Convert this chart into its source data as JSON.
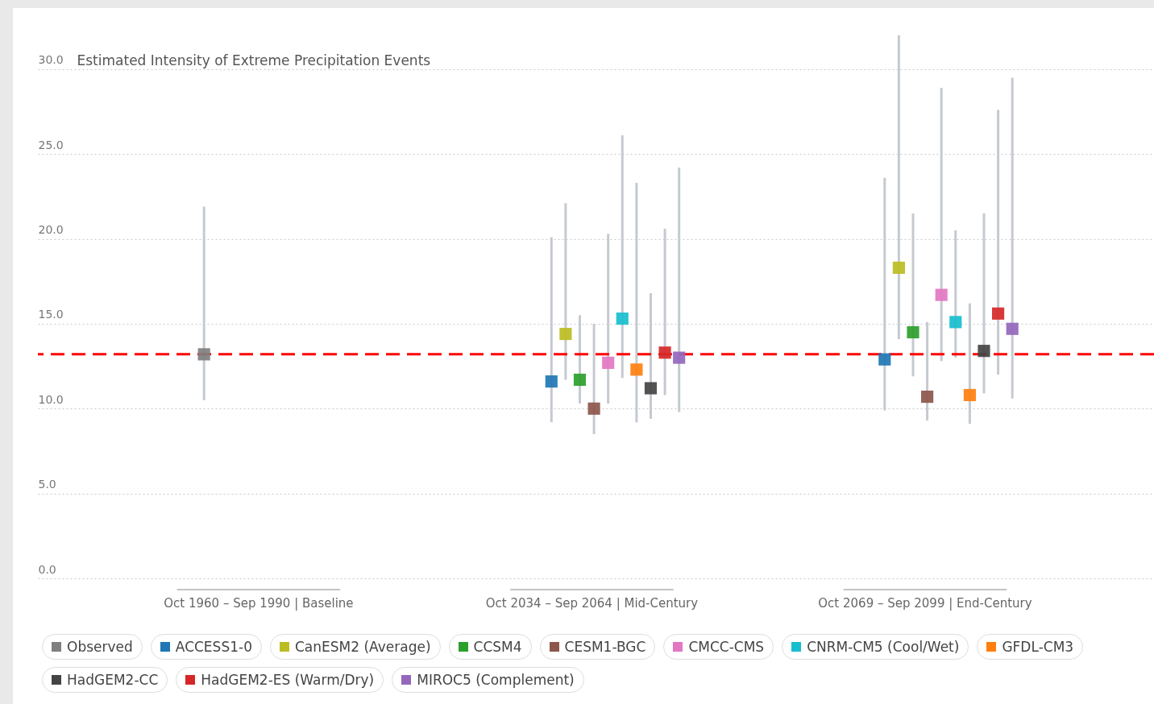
{
  "chart_data": {
    "type": "scatter",
    "ylabel": "Estimated Intensity of Extreme Precipitation Events",
    "categories": [
      "Oct 1960 – Sep 1990 | Baseline",
      "Oct 2034 – Sep 2064 | Mid-Century",
      "Oct 2069 – Sep 2099 | End-Century"
    ],
    "series": [
      {
        "name": "Observed",
        "color": "#7f7f7f",
        "values": [
          13.2,
          null,
          null
        ],
        "errors": [
          [
            10.5,
            21.9
          ],
          null,
          null
        ]
      },
      {
        "name": "ACCESS1-0",
        "color": "#1f77b4",
        "values": [
          null,
          11.6,
          12.9
        ],
        "errors": [
          null,
          [
            9.2,
            20.1
          ],
          [
            9.9,
            23.6
          ]
        ]
      },
      {
        "name": "CanESM2 (Average)",
        "color": "#bcbd22",
        "values": [
          null,
          14.4,
          18.3
        ],
        "errors": [
          null,
          [
            11.7,
            22.1
          ],
          [
            14.1,
            32.0
          ]
        ]
      },
      {
        "name": "CCSM4",
        "color": "#2ca02c",
        "values": [
          null,
          11.7,
          14.5
        ],
        "errors": [
          null,
          [
            10.3,
            15.5
          ],
          [
            11.9,
            21.5
          ]
        ]
      },
      {
        "name": "CESM1-BGC",
        "color": "#8c564b",
        "values": [
          null,
          10.0,
          10.7
        ],
        "errors": [
          null,
          [
            8.5,
            15.0
          ],
          [
            9.3,
            15.1
          ]
        ]
      },
      {
        "name": "CMCC-CMS",
        "color": "#e377c2",
        "values": [
          null,
          12.7,
          16.7
        ],
        "errors": [
          null,
          [
            10.3,
            20.3
          ],
          [
            12.8,
            28.9
          ]
        ]
      },
      {
        "name": "CNRM-CM5 (Cool/Wet)",
        "color": "#17becf",
        "values": [
          null,
          15.3,
          15.1
        ],
        "errors": [
          null,
          [
            11.8,
            26.1
          ],
          [
            13.0,
            20.5
          ]
        ]
      },
      {
        "name": "GFDL-CM3",
        "color": "#ff7f0e",
        "values": [
          null,
          12.3,
          10.8
        ],
        "errors": [
          null,
          [
            9.2,
            23.3
          ],
          [
            9.1,
            16.2
          ]
        ]
      },
      {
        "name": "HadGEM2-CC",
        "color": "#444444",
        "values": [
          null,
          11.2,
          13.4
        ],
        "errors": [
          null,
          [
            9.4,
            16.8
          ],
          [
            10.9,
            21.5
          ]
        ]
      },
      {
        "name": "HadGEM2-ES (Warm/Dry)",
        "color": "#d62728",
        "values": [
          null,
          13.3,
          15.6
        ],
        "errors": [
          null,
          [
            10.8,
            20.6
          ],
          [
            12.0,
            27.6
          ]
        ]
      },
      {
        "name": "MIROC5 (Complement)",
        "color": "#9467bd",
        "values": [
          null,
          13.0,
          14.7
        ],
        "errors": [
          null,
          [
            9.8,
            24.2
          ],
          [
            10.6,
            29.5
          ]
        ]
      }
    ],
    "ylim": [
      0,
      33.6
    ],
    "yticks": [
      {
        "value": 0,
        "label": "0.0"
      },
      {
        "value": 5,
        "label": "5.0"
      },
      {
        "value": 10,
        "label": "10.0"
      },
      {
        "value": 15,
        "label": "15.0"
      },
      {
        "value": 20,
        "label": "20.0"
      },
      {
        "value": 25,
        "label": "25.0"
      },
      {
        "value": 30,
        "label": "30.0"
      }
    ],
    "ref_lines": [
      {
        "axis": "y",
        "value": 13.2,
        "color": "#ff0000",
        "line_style": "dashed"
      }
    ],
    "grid": "y",
    "legend": "bottom",
    "marker": "square"
  }
}
